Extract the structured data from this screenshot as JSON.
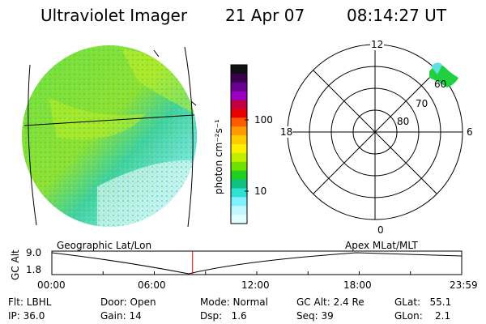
{
  "header": {
    "instrument": "Ultraviolet Imager",
    "date": "21 Apr 07",
    "time": "08:14:27 UT"
  },
  "colorbar": {
    "unit_label": "photon cm⁻²s⁻¹",
    "ticks": [
      "100",
      "10"
    ],
    "colors": [
      "#101010",
      "#3a0050",
      "#6a0090",
      "#9a00c0",
      "#c00040",
      "#e80000",
      "#ff5a00",
      "#ff9a00",
      "#ffcc00",
      "#fff000",
      "#c0f000",
      "#70e000",
      "#20d020",
      "#10c080",
      "#30e0d0",
      "#80f0ff",
      "#c0f8ff",
      "#e0ffff"
    ]
  },
  "polar": {
    "mlt_labels": {
      "top": "12",
      "left": "18",
      "right": "6",
      "bottom": "0"
    },
    "mlat_labels": [
      "60",
      "70",
      "80"
    ]
  },
  "timeline": {
    "left_label": "Geographic Lat/Lon",
    "right_label": "Apex MLat/MLT",
    "axis_title": "GC Alt",
    "y_top": "9.0",
    "y_bottom": "1.8",
    "x_ticks": [
      "00:00",
      "06:00",
      "12:00",
      "18:00",
      "23:59"
    ],
    "marker_hour": 8.24
  },
  "info": {
    "filter": "Flt: LBHL",
    "ip": "IP: 36.0",
    "door": "Door: Open",
    "gain": "Gain: 14",
    "mode": "Mode: Normal",
    "dsp": "Dsp:   1.6",
    "gc_alt": "GC Alt: 2.4 Re",
    "seq": "Seq: 39",
    "glat": "GLat:   55.1",
    "glon": "GLon:    2.1"
  }
}
